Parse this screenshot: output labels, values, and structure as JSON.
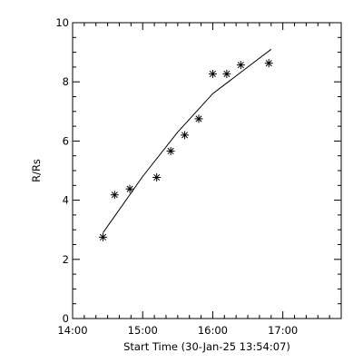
{
  "chart_data": {
    "type": "scatter",
    "title": "",
    "xlabel": "Start Time (30-Jan-25 13:54:07)",
    "ylabel": "R/Rs",
    "xlim": [
      "14:00",
      "17:50"
    ],
    "ylim": [
      0,
      10
    ],
    "x_tick_labels": [
      "14:00",
      "15:00",
      "16:00",
      "17:00"
    ],
    "y_tick_labels": [
      "0",
      "2",
      "4",
      "6",
      "8",
      "10"
    ],
    "grid": false,
    "legend": "none",
    "series": [
      {
        "marker": "asterisk",
        "points": [
          {
            "x": "14:26",
            "y": 2.75
          },
          {
            "x": "14:36",
            "y": 4.18
          },
          {
            "x": "14:49",
            "y": 4.38
          },
          {
            "x": "15:12",
            "y": 4.77
          },
          {
            "x": "15:24",
            "y": 5.66
          },
          {
            "x": "15:36",
            "y": 6.2
          },
          {
            "x": "15:48",
            "y": 6.75
          },
          {
            "x": "16:00",
            "y": 8.27
          },
          {
            "x": "16:12",
            "y": 8.27
          },
          {
            "x": "16:24",
            "y": 8.57
          },
          {
            "x": "16:48",
            "y": 8.63
          }
        ]
      },
      {
        "style": "line",
        "points": [
          {
            "x": "14:26",
            "y": 2.9
          },
          {
            "x": "15:00",
            "y": 4.8
          },
          {
            "x": "15:30",
            "y": 6.3
          },
          {
            "x": "16:00",
            "y": 7.6
          },
          {
            "x": "16:30",
            "y": 8.5
          },
          {
            "x": "16:50",
            "y": 9.1
          }
        ]
      }
    ]
  }
}
